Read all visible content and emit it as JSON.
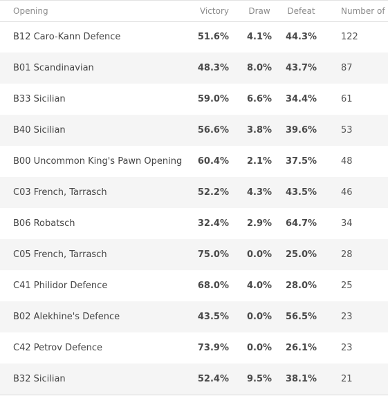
{
  "table": {
    "headers": {
      "opening": "Opening",
      "victory": "Victory",
      "draw": "Draw",
      "defeat": "Defeat",
      "number": "Number of games"
    },
    "rows": [
      {
        "opening": "B12 Caro-Kann Defence",
        "victory": "51.6%",
        "draw": "4.1%",
        "defeat": "44.3%",
        "number": "122"
      },
      {
        "opening": "B01 Scandinavian",
        "victory": "48.3%",
        "draw": "8.0%",
        "defeat": "43.7%",
        "number": "87"
      },
      {
        "opening": "B33 Sicilian",
        "victory": "59.0%",
        "draw": "6.6%",
        "defeat": "34.4%",
        "number": "61"
      },
      {
        "opening": "B40 Sicilian",
        "victory": "56.6%",
        "draw": "3.8%",
        "defeat": "39.6%",
        "number": "53"
      },
      {
        "opening": "B00 Uncommon King's Pawn Opening",
        "victory": "60.4%",
        "draw": "2.1%",
        "defeat": "37.5%",
        "number": "48"
      },
      {
        "opening": "C03 French, Tarrasch",
        "victory": "52.2%",
        "draw": "4.3%",
        "defeat": "43.5%",
        "number": "46"
      },
      {
        "opening": "B06 Robatsch",
        "victory": "32.4%",
        "draw": "2.9%",
        "defeat": "64.7%",
        "number": "34"
      },
      {
        "opening": "C05 French, Tarrasch",
        "victory": "75.0%",
        "draw": "0.0%",
        "defeat": "25.0%",
        "number": "28"
      },
      {
        "opening": "C41 Philidor Defence",
        "victory": "68.0%",
        "draw": "4.0%",
        "defeat": "28.0%",
        "number": "25"
      },
      {
        "opening": "B02 Alekhine's Defence",
        "victory": "43.5%",
        "draw": "0.0%",
        "defeat": "56.5%",
        "number": "23"
      },
      {
        "opening": "C42 Petrov Defence",
        "victory": "73.9%",
        "draw": "0.0%",
        "defeat": "26.1%",
        "number": "23"
      },
      {
        "opening": "B32 Sicilian",
        "victory": "52.4%",
        "draw": "9.5%",
        "defeat": "38.1%",
        "number": "21"
      }
    ]
  }
}
